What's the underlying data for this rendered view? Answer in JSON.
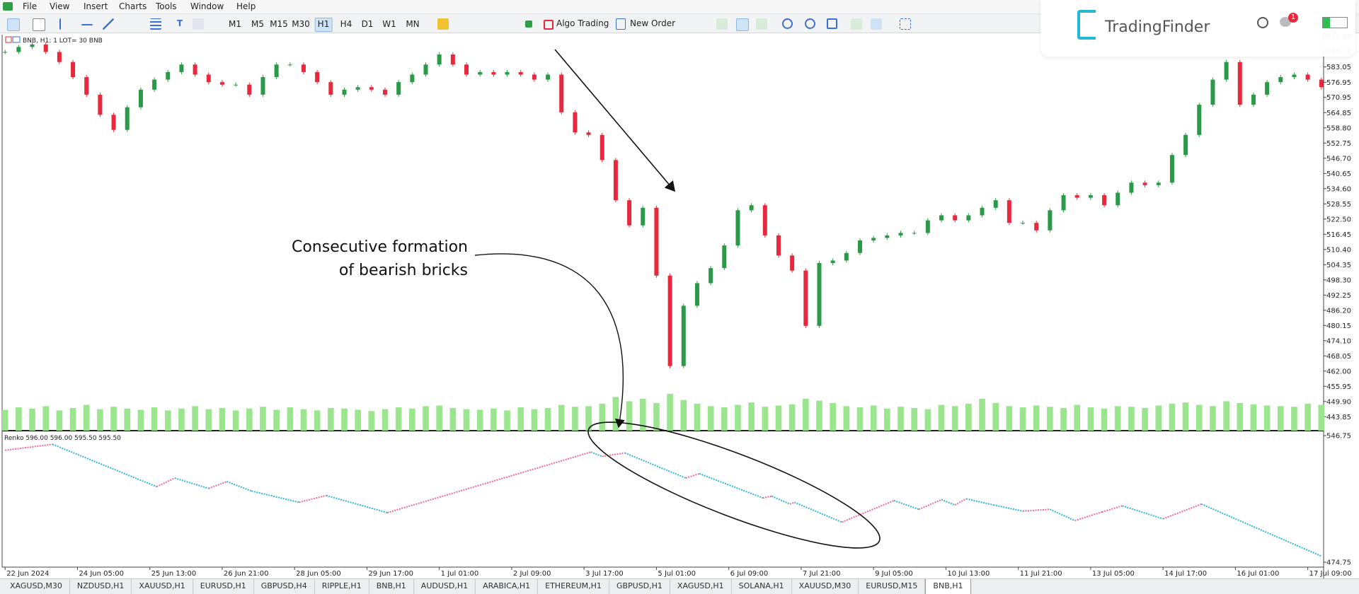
{
  "menu": [
    "File",
    "View",
    "Insert",
    "Charts",
    "Tools",
    "Window",
    "Help"
  ],
  "toolbar": {
    "timeframes": [
      "M1",
      "M5",
      "M15",
      "M30",
      "H1",
      "H4",
      "D1",
      "W1",
      "MN"
    ],
    "buttons": [
      "Algo Trading",
      "New Order"
    ]
  },
  "logo": "TradingFinder",
  "notification_count": 1,
  "chart_data": [
    {
      "type": "candlestick",
      "header": "BNB, H1:  1 LOT= 30 BNB",
      "x": [
        0,
        6,
        12,
        18,
        24,
        30,
        36,
        42,
        48,
        54,
        60,
        66,
        72,
        78,
        84,
        90,
        96,
        102,
        108,
        114,
        120,
        126,
        132,
        138,
        144,
        150,
        156,
        162,
        168,
        174,
        180,
        186,
        192,
        198,
        204,
        210,
        216,
        222,
        228,
        234,
        240,
        246,
        252,
        258,
        264,
        270,
        276,
        282,
        288,
        294,
        300,
        306,
        312,
        318,
        324,
        330,
        336,
        342,
        348,
        354,
        360,
        366,
        372,
        378,
        384,
        390,
        396,
        402,
        408,
        414,
        420,
        426,
        432,
        438,
        444,
        450,
        456,
        462,
        468,
        474,
        480,
        486,
        492,
        498,
        504,
        510,
        516,
        522,
        528,
        534,
        540,
        546,
        552,
        558,
        564,
        570,
        576,
        582
      ],
      "close": [
        589,
        591,
        592,
        589,
        585,
        579,
        572,
        564,
        558,
        567,
        574,
        578,
        581,
        584,
        580,
        577,
        576,
        576,
        572,
        579,
        584,
        584,
        581,
        577,
        572,
        574,
        575,
        574,
        572,
        577,
        580,
        584,
        588,
        584,
        580,
        581,
        580,
        581,
        580,
        578,
        580,
        565,
        557,
        556,
        546,
        530,
        520,
        527,
        500,
        464,
        488,
        497,
        503,
        512,
        526,
        528,
        516,
        508,
        502,
        480,
        505,
        506,
        509,
        514,
        515,
        516,
        517,
        517,
        522,
        524,
        522,
        524,
        527,
        530,
        521,
        521,
        518,
        526,
        532,
        531,
        532,
        528,
        533,
        537,
        536,
        537,
        548,
        556,
        568,
        578,
        585,
        568,
        572,
        577,
        579,
        580,
        578,
        575
      ],
      "volume": [
        34,
        38,
        36,
        40,
        33,
        37,
        42,
        35,
        39,
        36,
        34,
        38,
        33,
        36,
        40,
        35,
        37,
        33,
        36,
        39,
        34,
        38,
        35,
        33,
        37,
        36,
        34,
        32,
        35,
        38,
        36,
        40,
        41,
        37,
        35,
        34,
        36,
        33,
        38,
        35,
        37,
        42,
        39,
        40,
        44,
        55,
        48,
        52,
        45,
        60,
        50,
        44,
        40,
        38,
        42,
        46,
        39,
        41,
        43,
        52,
        49,
        45,
        40,
        38,
        41,
        36,
        39,
        37,
        35,
        42,
        40,
        44,
        52,
        45,
        40,
        38,
        41,
        39,
        37,
        42,
        38,
        36,
        40,
        39,
        37,
        41,
        44,
        46,
        42,
        40,
        48,
        45,
        43,
        41,
        40,
        39,
        44,
        42
      ],
      "xlim": [
        -1,
        583
      ],
      "ylim": [
        438.3,
        595.9
      ],
      "yticks": [
        595.15,
        589.05,
        583.05,
        576.95,
        570.95,
        564.85,
        {
          "value": 558.8,
          "label": "558.80"
        },
        552.75,
        {
          "value": 546.7,
          "label": "546.70"
        },
        540.65,
        {
          "value": 534.6,
          "label": "534.60"
        },
        528.55,
        {
          "value": 522.5,
          "label": "522.50"
        },
        516.45,
        {
          "value": 510.4,
          "label": "510.40"
        },
        504.35,
        {
          "value": 498.3,
          "label": "498.30"
        },
        492.25,
        {
          "value": 486.2,
          "label": "486.20"
        },
        480.15,
        {
          "value": 474.1,
          "label": "474.10"
        },
        468.05,
        {
          "value": 462,
          "label": "462.00"
        },
        455.95,
        {
          "value": 449.9,
          "label": "449.90"
        },
        443.85
      ],
      "xticks": [
        {
          "value": 0,
          "label": "22 Jun 2024"
        },
        {
          "value": 32,
          "label": "24 Jun 05:00"
        },
        {
          "value": 64,
          "label": "25 Jun 13:00"
        },
        {
          "value": 96,
          "label": "26 Jun 21:00"
        },
        {
          "value": 128,
          "label": "28 Jun 05:00"
        },
        {
          "value": 160,
          "label": "29 Jun 17:00"
        },
        {
          "value": 192,
          "label": "1 Jul 01:00"
        },
        {
          "value": 224,
          "label": "2 Jul 09:00"
        },
        {
          "value": 256,
          "label": "3 Jul 17:00"
        },
        {
          "value": 288,
          "label": "5 Jul 01:00"
        },
        {
          "value": 320,
          "label": "6 Jul 09:00"
        },
        {
          "value": 352,
          "label": "7 Jul 21:00"
        },
        {
          "value": 384,
          "label": "9 Jul 05:00"
        },
        {
          "value": 416,
          "label": "10 Jul 13:00"
        },
        {
          "value": 448,
          "label": "11 Jul 21:00"
        },
        {
          "value": 480,
          "label": "13 Jul 05:00"
        },
        {
          "value": 512,
          "label": "14 Jul 17:00"
        },
        {
          "value": 544,
          "label": "16 Jul 01:00"
        },
        {
          "value": 576,
          "label": "17 Jul 09:00"
        }
      ],
      "up_color": "#2a9a48",
      "down_color": "#e8283c",
      "volume_color": "#9be58f"
    },
    {
      "type": "renko",
      "title": "Renko 596.00 596.00 595.50 595.50",
      "x": [
        0,
        21,
        67,
        75,
        90,
        98,
        109,
        130,
        142,
        169,
        259,
        264,
        274,
        301,
        307,
        335,
        339,
        347,
        349,
        370,
        393,
        404,
        414,
        420,
        425,
        437,
        450,
        462,
        473,
        485,
        494,
        512,
        529,
        582
      ],
      "values": [
        538.4,
        541.8,
        517.7,
        522.6,
        516.7,
        520.6,
        515.2,
        508.8,
        512.7,
        502.9,
        537.4,
        534.9,
        536.9,
        522.6,
        525.1,
        511.3,
        512.3,
        507.8,
        508.8,
        497.5,
        509.8,
        504.8,
        510.3,
        507.3,
        510.8,
        507.3,
        503.8,
        504.8,
        498.4,
        503.3,
        506.8,
        499.4,
        507.8,
        478.2
      ],
      "xlim": [
        -1,
        583
      ],
      "ylim": [
        474.75,
        546.75
      ],
      "yticks": [
        546.75,
        474.75
      ],
      "up_color": "#f06a8c",
      "down_color": "#2fb4dc"
    }
  ],
  "annotation": {
    "lines": [
      "Consecutive formation",
      "of bearish bricks"
    ]
  },
  "tabs": [
    "XAGUSD,M30",
    "NZDUSD,H1",
    "XAUUSD,H1",
    "EURUSD,H1",
    "GBPUSD,H4",
    "RIPPLE,H1",
    "BNB,H1",
    "AUDUSD,H1",
    "ARABICA,H1",
    "ETHEREUM,H1",
    "GBPUSD,H1",
    "XAGUSD,H1",
    "SOLANA,H1",
    "XAUUSD,M30",
    "EURUSD,M15",
    "BNB,H1"
  ]
}
